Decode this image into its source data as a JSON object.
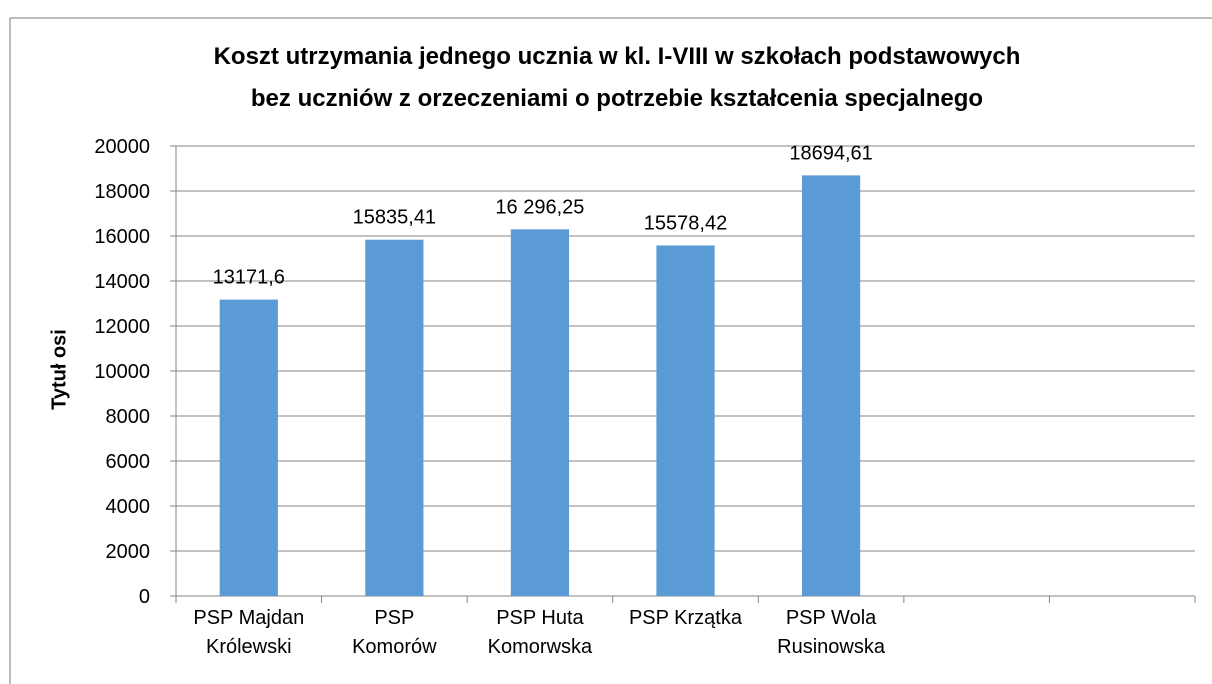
{
  "chart_data": {
    "type": "bar",
    "title": "Koszt utrzymania jednego ucznia w kl. I-VIII w szkołach podstawowych\nbez uczniów z orzeczeniami o potrzebie kształcenia specjalnego",
    "y_axis_label": "Tytuł osi",
    "categories": [
      "PSP Majdan\nKrólewski",
      "PSP\nKomorów",
      "PSP Huta\nKomorwska",
      "PSP Krzątka",
      "PSP Wola\nRusinowska",
      null,
      null
    ],
    "values": [
      13171.6,
      15835.41,
      16296.25,
      15578.42,
      18694.61,
      null,
      null
    ],
    "value_labels": [
      "13171,6",
      "15835,41",
      "16 296,25",
      "15578,42",
      "18694,61",
      null,
      null
    ],
    "color": "#5b9bd5",
    "ylim": [
      0,
      20000
    ],
    "yticks": [
      0,
      2000,
      4000,
      6000,
      8000,
      10000,
      12000,
      14000,
      16000,
      18000,
      20000
    ],
    "grid": true
  }
}
